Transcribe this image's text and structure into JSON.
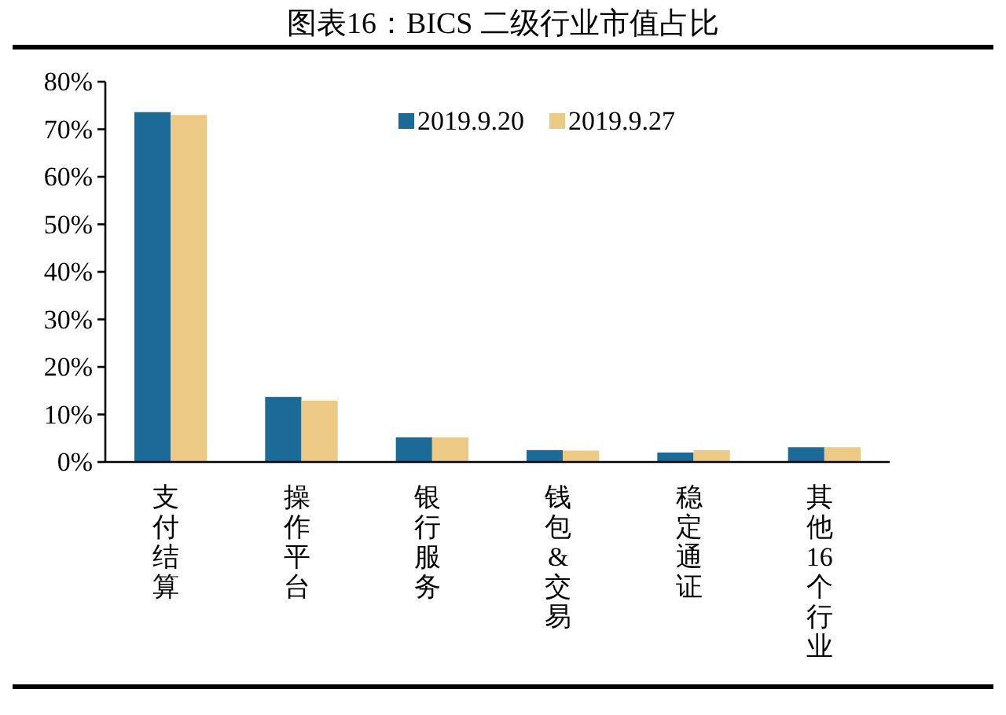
{
  "chart_data": {
    "type": "bar",
    "title": "图表16：BICS 二级行业市值占比",
    "categories": [
      "支付结算",
      "操作平台",
      "银行服务",
      "钱包&交易",
      "稳定通证",
      "其他16个行业"
    ],
    "series": [
      {
        "name": "2019.9.20",
        "color": "#1b6a98",
        "values": [
          73.6,
          13.7,
          5.2,
          2.5,
          2.0,
          3.1
        ]
      },
      {
        "name": "2019.9.27",
        "color": "#ecca85",
        "values": [
          73.0,
          12.9,
          5.2,
          2.4,
          2.5,
          3.1
        ]
      }
    ],
    "ylim": [
      0,
      80
    ],
    "yticks": [
      {
        "value": 0,
        "label": "0%"
      },
      {
        "value": 10,
        "label": "10%"
      },
      {
        "value": 20,
        "label": "20%"
      },
      {
        "value": 30,
        "label": "30%"
      },
      {
        "value": 40,
        "label": "40%"
      },
      {
        "value": 50,
        "label": "50%"
      },
      {
        "value": 60,
        "label": "60%"
      },
      {
        "value": 70,
        "label": "70%"
      },
      {
        "value": 80,
        "label": "80%"
      }
    ],
    "legend": "top"
  }
}
